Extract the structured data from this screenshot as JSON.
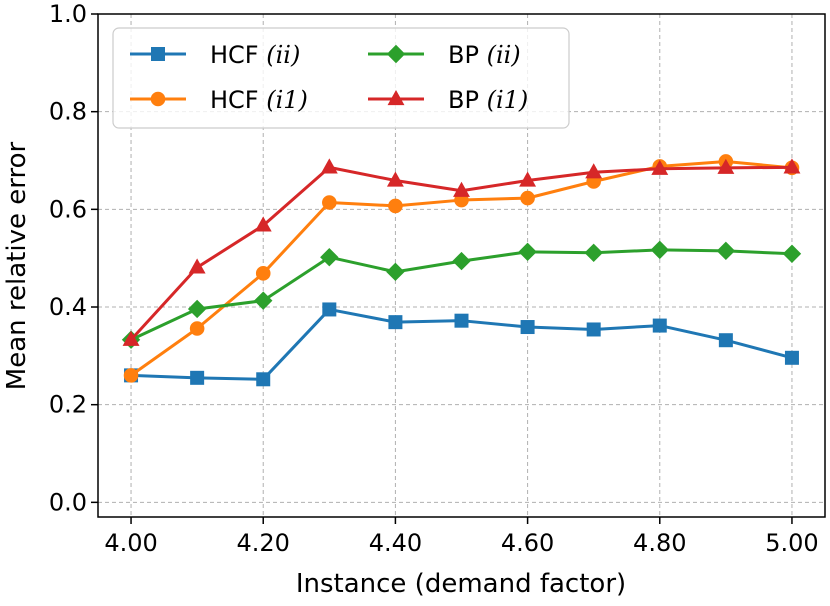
{
  "chart_data": {
    "type": "line",
    "xlabel": "Instance (demand factor)",
    "ylabel": "Mean relative error",
    "xlim": [
      3.95,
      5.05
    ],
    "ylim": [
      -0.03,
      1.0
    ],
    "x": [
      4.0,
      4.1,
      4.2,
      4.3,
      4.4,
      4.5,
      4.6,
      4.7,
      4.8,
      4.9,
      5.0
    ],
    "xticks": [
      4.0,
      4.2,
      4.4,
      4.6,
      4.8,
      5.0
    ],
    "xtick_labels": [
      "4.00",
      "4.20",
      "4.40",
      "4.60",
      "4.80",
      "5.00"
    ],
    "yticks": [
      0.0,
      0.2,
      0.4,
      0.6,
      0.8,
      1.0
    ],
    "ytick_labels": [
      "0.0",
      "0.2",
      "0.4",
      "0.6",
      "0.8",
      "1.0"
    ],
    "grid": true,
    "legend_position": "top-left",
    "legend_columns": 2,
    "series": [
      {
        "name": "HCF",
        "name_math": "(ii)",
        "color": "#1f77b4",
        "marker": "square",
        "values": [
          0.26,
          0.255,
          0.252,
          0.395,
          0.369,
          0.372,
          0.359,
          0.354,
          0.362,
          0.332,
          0.296
        ]
      },
      {
        "name": "HCF",
        "name_math": "(i1)",
        "color": "#ff7f0e",
        "marker": "circle",
        "values": [
          0.26,
          0.356,
          0.469,
          0.614,
          0.607,
          0.619,
          0.623,
          0.657,
          0.688,
          0.698,
          0.685
        ]
      },
      {
        "name": "BP",
        "name_math": "(ii)",
        "color": "#2ca02c",
        "marker": "diamond",
        "values": [
          0.333,
          0.396,
          0.413,
          0.502,
          0.472,
          0.494,
          0.513,
          0.511,
          0.517,
          0.515,
          0.509
        ]
      },
      {
        "name": "BP",
        "name_math": "(i1)",
        "color": "#d62728",
        "marker": "triangle",
        "values": [
          0.333,
          0.481,
          0.567,
          0.686,
          0.659,
          0.638,
          0.659,
          0.676,
          0.683,
          0.685,
          0.686
        ]
      }
    ]
  }
}
